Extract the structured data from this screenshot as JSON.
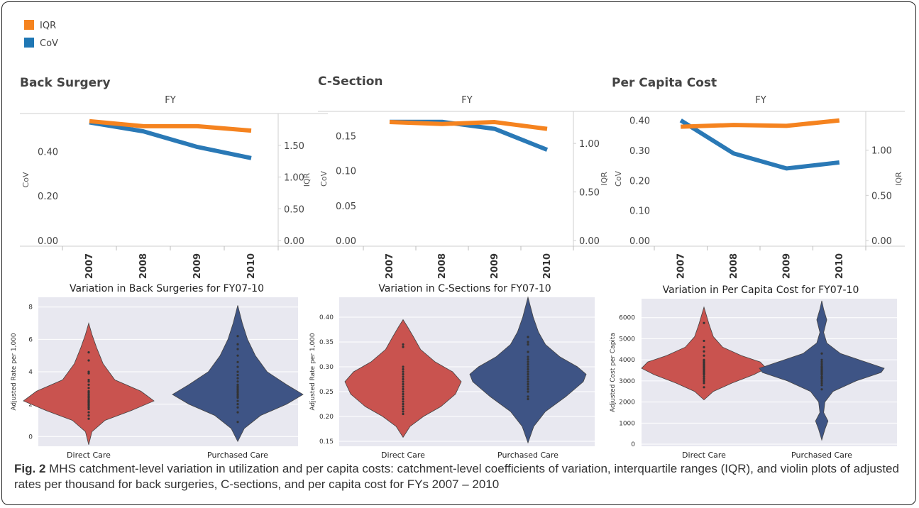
{
  "legend": [
    {
      "label": "IQR",
      "color": "#f5831f"
    },
    {
      "label": "CoV",
      "color": "#1f77b4"
    }
  ],
  "colors": {
    "iqr": "#f5831f",
    "cov": "#2a79b6",
    "direct": "#c9534f",
    "purchased": "#3e5485",
    "violin_bg": "#e8e8f0"
  },
  "caption": {
    "label": "Fig. 2",
    "text": " MHS catchment-level variation in utilization and per capita costs: catchment-level coefficients of variation, interquartile ranges (IQR), and violin plots of adjusted rates per thousand for back surgeries, C-sections, and per capita cost for FYs 2007 – 2010"
  },
  "chart_data": [
    {
      "type": "line",
      "title": "Back Surgery",
      "top_label": "FY",
      "x": [
        "2007",
        "2008",
        "2009",
        "2010"
      ],
      "ylabel": "CoV",
      "ylim": [
        0,
        0.57
      ],
      "yticks": [
        "0.00",
        "0.20",
        "0.40"
      ],
      "ytick_values": [
        0,
        0.2,
        0.4
      ],
      "y2label": "IQR",
      "y2lim": [
        0,
        2.0
      ],
      "y2ticks": [
        "0.00",
        "0.50",
        "1.00",
        "1.50"
      ],
      "y2tick_values": [
        0,
        0.5,
        1.0,
        1.5
      ],
      "series": [
        {
          "name": "CoV",
          "axis": "left",
          "values": [
            0.53,
            0.49,
            0.42,
            0.37
          ]
        },
        {
          "name": "IQR",
          "axis": "right",
          "values": [
            1.88,
            1.8,
            1.8,
            1.73
          ]
        }
      ]
    },
    {
      "type": "line",
      "title": "C-Section",
      "top_label": "FY",
      "x": [
        "2007",
        "2008",
        "2009",
        "2010"
      ],
      "ylabel": "CoV",
      "ylim": [
        0,
        0.185
      ],
      "yticks": [
        "0.00",
        "0.05",
        "0.10",
        "0.15"
      ],
      "ytick_values": [
        0,
        0.05,
        0.1,
        0.15
      ],
      "y2label": "IQR",
      "y2lim": [
        0,
        1.33
      ],
      "y2ticks": [
        "0.00",
        "0.50",
        "1.00"
      ],
      "y2tick_values": [
        0,
        0.5,
        1.0
      ],
      "series": [
        {
          "name": "CoV",
          "axis": "left",
          "values": [
            0.17,
            0.17,
            0.16,
            0.13
          ]
        },
        {
          "name": "IQR",
          "axis": "right",
          "values": [
            1.22,
            1.2,
            1.22,
            1.15
          ]
        }
      ]
    },
    {
      "type": "line",
      "title": "Per Capita Cost",
      "top_label": "FY",
      "x": [
        "2007",
        "2008",
        "2009",
        "2010"
      ],
      "ylabel": "CoV",
      "ylim": [
        0,
        0.43
      ],
      "yticks": [
        "0.00",
        "0.10",
        "0.20",
        "0.30",
        "0.40"
      ],
      "ytick_values": [
        0,
        0.1,
        0.2,
        0.3,
        0.4
      ],
      "y2label": "IQR",
      "y2lim": [
        0,
        1.43
      ],
      "y2ticks": [
        "0.00",
        "0.50",
        "1.00"
      ],
      "y2tick_values": [
        0,
        0.5,
        1.0
      ],
      "series": [
        {
          "name": "CoV",
          "axis": "left",
          "values": [
            0.4,
            0.29,
            0.24,
            0.26
          ]
        },
        {
          "name": "IQR",
          "axis": "right",
          "values": [
            1.26,
            1.28,
            1.27,
            1.33
          ]
        }
      ]
    },
    {
      "type": "violin",
      "title": "Variation in Back Surgeries for FY07-10",
      "ylabel": "Adjusted Rate per 1,000",
      "ylim": [
        -0.6,
        8.6
      ],
      "yticks": [
        "0",
        "2",
        "4",
        "6",
        "8"
      ],
      "ytick_values": [
        0,
        2,
        4,
        6,
        8
      ],
      "categories": [
        "Direct Care",
        "Purchased Care"
      ],
      "violins": [
        {
          "ymin": -0.5,
          "ymax": 7.0,
          "profile": [
            [
              -0.5,
              0
            ],
            [
              0.3,
              0.05
            ],
            [
              1.0,
              0.25
            ],
            [
              1.6,
              0.65
            ],
            [
              2.2,
              1.0
            ],
            [
              2.8,
              0.8
            ],
            [
              3.5,
              0.4
            ],
            [
              4.5,
              0.22
            ],
            [
              5.5,
              0.12
            ],
            [
              6.3,
              0.05
            ],
            [
              7.0,
              0
            ]
          ],
          "points": [
            1.1,
            1.3,
            1.5,
            1.7,
            1.8,
            1.9,
            2.0,
            2.0,
            2.1,
            2.2,
            2.2,
            2.3,
            2.4,
            2.5,
            2.6,
            2.7,
            2.8,
            3.0,
            3.2,
            3.4,
            3.5,
            3.9,
            4.0,
            4.7,
            5.2
          ]
        },
        {
          "ymin": -0.3,
          "ymax": 8.1,
          "profile": [
            [
              -0.3,
              0
            ],
            [
              0.5,
              0.1
            ],
            [
              1.3,
              0.35
            ],
            [
              2.0,
              0.75
            ],
            [
              2.6,
              1.0
            ],
            [
              3.2,
              0.75
            ],
            [
              4.0,
              0.45
            ],
            [
              5.0,
              0.27
            ],
            [
              6.0,
              0.15
            ],
            [
              7.0,
              0.07
            ],
            [
              8.1,
              0
            ]
          ],
          "points": [
            0.9,
            1.5,
            1.8,
            2.0,
            2.2,
            2.4,
            2.5,
            2.6,
            2.7,
            2.8,
            2.9,
            3.0,
            3.1,
            3.2,
            3.4,
            3.6,
            3.8,
            4.0,
            4.3,
            4.6,
            5.0,
            5.4,
            5.7,
            6.2
          ]
        }
      ]
    },
    {
      "type": "violin",
      "title": "Variation in C-Sections for FY07-10",
      "ylabel": "Adjusted Rate per 1,000",
      "ylim": [
        0.14,
        0.44
      ],
      "yticks": [
        "0.15",
        "0.20",
        "0.25",
        "0.30",
        "0.35",
        "0.40"
      ],
      "ytick_values": [
        0.15,
        0.2,
        0.25,
        0.3,
        0.35,
        0.4
      ],
      "categories": [
        "Direct Care",
        "Purchased Care"
      ],
      "violins": [
        {
          "ymin": 0.158,
          "ymax": 0.395,
          "profile": [
            [
              0.158,
              0
            ],
            [
              0.18,
              0.12
            ],
            [
              0.2,
              0.35
            ],
            [
              0.22,
              0.65
            ],
            [
              0.245,
              0.9
            ],
            [
              0.27,
              1.0
            ],
            [
              0.29,
              0.85
            ],
            [
              0.31,
              0.55
            ],
            [
              0.335,
              0.3
            ],
            [
              0.36,
              0.18
            ],
            [
              0.38,
              0.08
            ],
            [
              0.395,
              0
            ]
          ],
          "points": [
            0.205,
            0.21,
            0.215,
            0.22,
            0.225,
            0.23,
            0.235,
            0.24,
            0.245,
            0.25,
            0.255,
            0.26,
            0.265,
            0.27,
            0.275,
            0.28,
            0.285,
            0.29,
            0.295,
            0.3,
            0.34,
            0.345
          ]
        },
        {
          "ymin": 0.147,
          "ymax": 0.44,
          "profile": [
            [
              0.147,
              0
            ],
            [
              0.18,
              0.1
            ],
            [
              0.21,
              0.3
            ],
            [
              0.24,
              0.65
            ],
            [
              0.27,
              0.95
            ],
            [
              0.285,
              1.0
            ],
            [
              0.3,
              0.85
            ],
            [
              0.32,
              0.55
            ],
            [
              0.345,
              0.3
            ],
            [
              0.37,
              0.18
            ],
            [
              0.4,
              0.09
            ],
            [
              0.44,
              0
            ]
          ],
          "points": [
            0.235,
            0.24,
            0.25,
            0.255,
            0.26,
            0.265,
            0.27,
            0.275,
            0.28,
            0.285,
            0.29,
            0.295,
            0.3,
            0.305,
            0.31,
            0.315,
            0.32,
            0.33,
            0.345,
            0.35,
            0.36
          ]
        }
      ]
    },
    {
      "type": "violin",
      "title": "Variation in Per Capita Cost for FY07-10",
      "ylabel": "Adjusted Cost per Capita",
      "ylim": [
        -100,
        6900
      ],
      "yticks": [
        "0",
        "1000",
        "2000",
        "3000",
        "4000",
        "5000",
        "6000"
      ],
      "ytick_values": [
        0,
        1000,
        2000,
        3000,
        4000,
        5000,
        6000
      ],
      "categories": [
        "Direct Care",
        "Purchased Care"
      ],
      "violins": [
        {
          "ymin": 2100,
          "ymax": 6500,
          "profile": [
            [
              2100,
              0
            ],
            [
              2500,
              0.15
            ],
            [
              2900,
              0.45
            ],
            [
              3300,
              0.8
            ],
            [
              3600,
              1.0
            ],
            [
              3900,
              0.9
            ],
            [
              4200,
              0.6
            ],
            [
              4600,
              0.3
            ],
            [
              5100,
              0.15
            ],
            [
              5700,
              0.08
            ],
            [
              6100,
              0.04
            ],
            [
              6500,
              0
            ]
          ],
          "points": [
            2700,
            2900,
            3000,
            3100,
            3200,
            3300,
            3350,
            3400,
            3450,
            3500,
            3550,
            3600,
            3650,
            3700,
            3750,
            3800,
            3850,
            3900,
            3950,
            4000,
            4200,
            4400,
            4600,
            4900,
            5750
          ]
        },
        {
          "ymin": 200,
          "ymax": 6800,
          "profile": [
            [
              200,
              0
            ],
            [
              700,
              0.05
            ],
            [
              1100,
              0.1
            ],
            [
              1500,
              0.03
            ],
            [
              2000,
              0.05
            ],
            [
              2500,
              0.18
            ],
            [
              3000,
              0.55
            ],
            [
              3400,
              0.95
            ],
            [
              3600,
              1.0
            ],
            [
              3900,
              0.7
            ],
            [
              4300,
              0.3
            ],
            [
              4800,
              0.08
            ],
            [
              5300,
              0.03
            ],
            [
              5900,
              0.08
            ],
            [
              6400,
              0.03
            ],
            [
              6800,
              0
            ]
          ],
          "points": [
            2600,
            2800,
            2900,
            3000,
            3100,
            3150,
            3200,
            3300,
            3350,
            3400,
            3450,
            3500,
            3550,
            3600,
            3650,
            3700,
            3800,
            3900,
            4000,
            4300
          ]
        }
      ]
    }
  ]
}
